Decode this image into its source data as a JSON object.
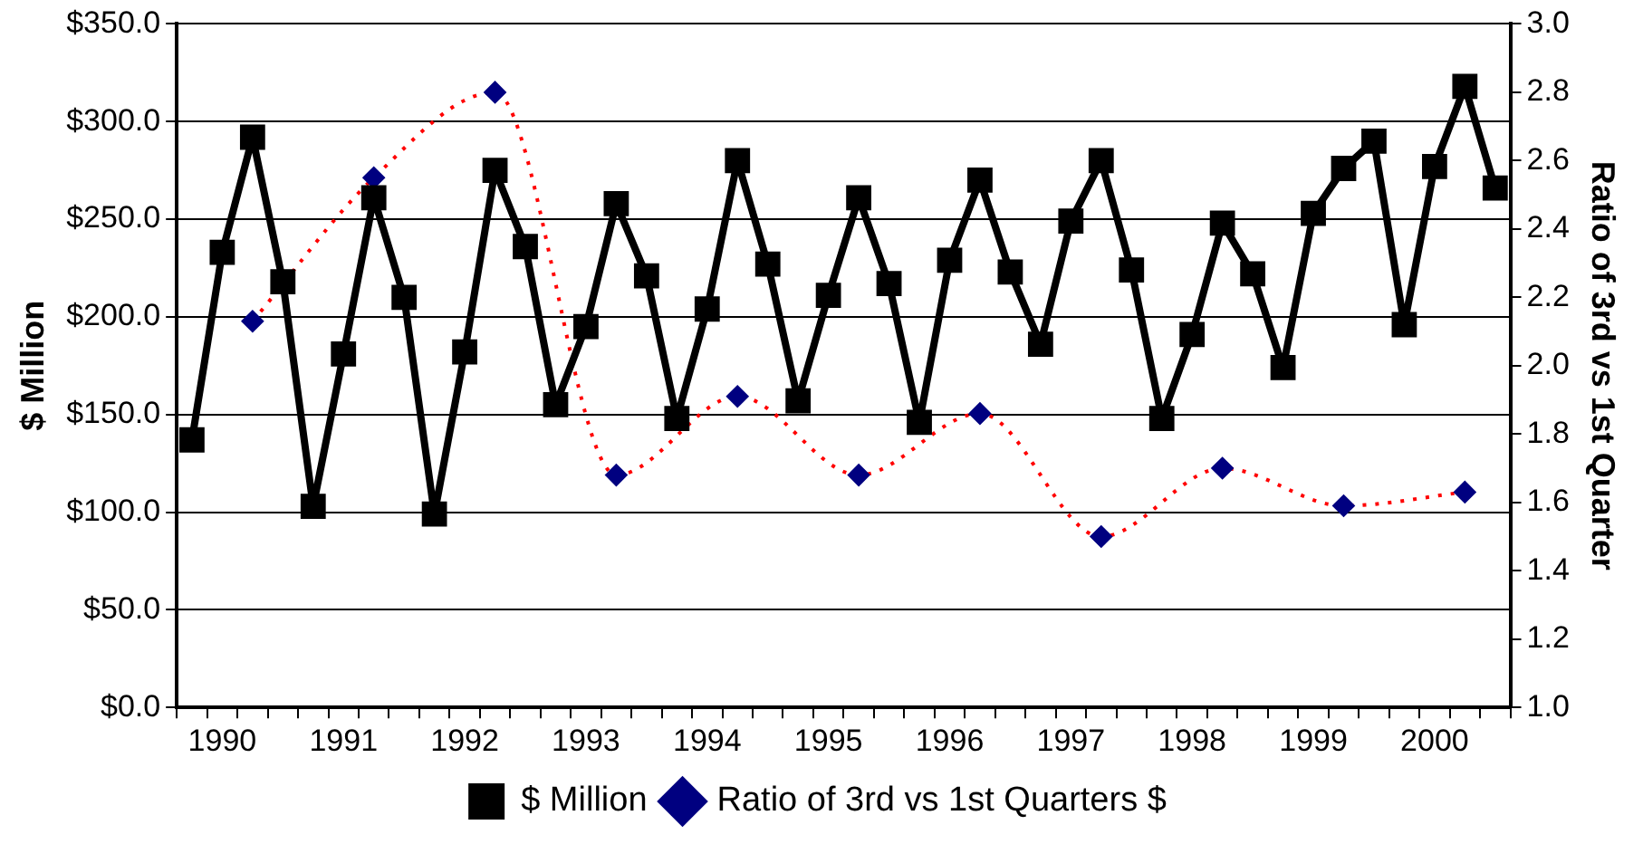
{
  "chart_data": {
    "type": "line",
    "categories": [
      null,
      "1990",
      null,
      null,
      null,
      "1991",
      null,
      null,
      null,
      "1992",
      null,
      null,
      null,
      "1993",
      null,
      null,
      null,
      "1994",
      null,
      null,
      null,
      "1995",
      null,
      null,
      null,
      "1996",
      null,
      null,
      null,
      "1997",
      null,
      null,
      null,
      "1998",
      null,
      null,
      null,
      "1999",
      null,
      null,
      null,
      "2000",
      null,
      null
    ],
    "ylabel": "$ Million",
    "y2label": "Ratio of 3rd vs 1st Quarter",
    "series": [
      {
        "name": "$ Million",
        "color": "#000000",
        "marker": "square",
        "line_style": "solid",
        "values": [
          137,
          233,
          292,
          218,
          103,
          181,
          261,
          210,
          99,
          182,
          275,
          236,
          155,
          195,
          258,
          221,
          148,
          204,
          280,
          227,
          157,
          211,
          261,
          217,
          146,
          229,
          270,
          223,
          186,
          249,
          280,
          224,
          148,
          191,
          248,
          222,
          174,
          253,
          276,
          290,
          196,
          277,
          318,
          266
        ]
      },
      {
        "name": "Ratio of 3rd vs 1st Quarters $",
        "axis": "y2",
        "color": "#ff0000",
        "colors": [
          "#000080",
          "#000080",
          "#000080",
          "#000080",
          "#000080",
          "#000080",
          "#000080",
          "#000080",
          "#000080",
          "#000080",
          "#000080",
          "#000080",
          "#000080",
          "#000080",
          "#000080",
          "#000080",
          "#000080",
          "#000080",
          "#000080",
          "#000080",
          "#000080",
          "#000080",
          "#000080",
          "#000080",
          "#000080",
          "#000080",
          "#000080",
          "#000080",
          "#000080",
          "#000080",
          "#000080",
          "#000080",
          "#000080",
          "#000080",
          "#000080",
          "#000080",
          "#000080",
          "#000080",
          "#000080",
          "#000080",
          "#000080",
          "#000080",
          "#000080",
          "#000080"
        ],
        "marker": "diamond",
        "line_style": "dotted",
        "values": [
          null,
          null,
          2.13,
          null,
          null,
          null,
          2.55,
          null,
          null,
          null,
          2.8,
          null,
          null,
          null,
          1.68,
          null,
          null,
          null,
          1.91,
          null,
          null,
          null,
          1.68,
          null,
          null,
          null,
          1.86,
          null,
          null,
          null,
          1.5,
          null,
          null,
          null,
          1.7,
          null,
          null,
          null,
          1.59,
          null,
          null,
          null,
          1.63,
          null
        ]
      }
    ],
    "ylim": [
      0,
      350
    ],
    "yticks": [
      {
        "value": 0,
        "label": "$0.0"
      },
      {
        "value": 50,
        "label": "$50.0"
      },
      {
        "value": 100,
        "label": "$100.0"
      },
      {
        "value": 150,
        "label": "$150.0"
      },
      {
        "value": 200,
        "label": "$200.0"
      },
      {
        "value": 250,
        "label": "$250.0"
      },
      {
        "value": 300,
        "label": "$300.0"
      },
      {
        "value": 350,
        "label": "$350.0"
      }
    ],
    "y2lim": [
      1,
      3
    ],
    "y2ticks": [
      {
        "value": 1,
        "label": "1.0"
      },
      {
        "value": 1.2,
        "label": "1.2"
      },
      {
        "value": 1.4,
        "label": "1.4"
      },
      {
        "value": 1.6,
        "label": "1.6"
      },
      {
        "value": 1.8,
        "label": "1.8"
      },
      {
        "value": 2,
        "label": "2.0"
      },
      {
        "value": 2.2,
        "label": "2.2"
      },
      {
        "value": 2.4,
        "label": "2.4"
      },
      {
        "value": 2.6,
        "label": "2.6"
      },
      {
        "value": 2.8,
        "label": "2.8"
      },
      {
        "value": 3,
        "label": "3.0"
      }
    ],
    "grid": "y",
    "legend": "bottom"
  }
}
